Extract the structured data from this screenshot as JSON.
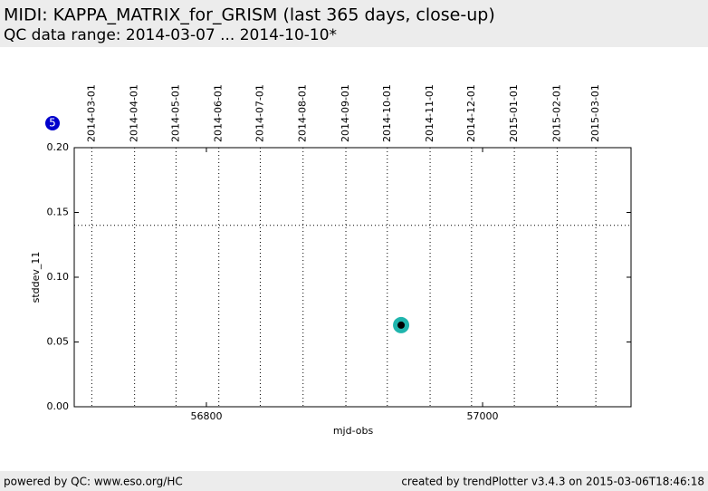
{
  "chart_data": {
    "type": "scatter",
    "title": "MIDI: KAPPA_MATRIX_for_GRISM (last 365 days, close-up)",
    "subtitle": "QC data range: 2014-03-07 ... 2014-10-10*",
    "x_label": "mjd-obs",
    "y_label": "stddev_11",
    "xlim": [
      56704.3,
      57107.5
    ],
    "ylim": [
      0,
      0.2
    ],
    "xticks": [
      56800,
      57000
    ],
    "yticks": [
      {
        "value": 0,
        "label": "0.00"
      },
      {
        "value": 0.05,
        "label": "0.05"
      },
      {
        "value": 0.1,
        "label": "0.10"
      },
      {
        "value": 0.15,
        "label": "0.15"
      },
      {
        "value": 0.2,
        "label": "0.20"
      }
    ],
    "date_lines": [
      {
        "value": 56717,
        "label": "2014-03-01"
      },
      {
        "value": 56748,
        "label": "2014-04-01"
      },
      {
        "value": 56778,
        "label": "2014-05-01"
      },
      {
        "value": 56809,
        "label": "2014-06-01"
      },
      {
        "value": 56839,
        "label": "2014-07-01"
      },
      {
        "value": 56870,
        "label": "2014-08-01"
      },
      {
        "value": 56901,
        "label": "2014-09-01"
      },
      {
        "value": 56931,
        "label": "2014-10-01"
      },
      {
        "value": 56962,
        "label": "2014-11-01"
      },
      {
        "value": 56992,
        "label": "2014-12-01"
      },
      {
        "value": 57023,
        "label": "2015-01-01"
      },
      {
        "value": 57054,
        "label": "2015-02-01"
      },
      {
        "value": 57082,
        "label": "2015-03-01"
      }
    ],
    "hlines": [
      0.14
    ],
    "annotation": "5",
    "x": [
      56941
    ],
    "series": [
      {
        "color": "#1fb5ad",
        "values": [
          0.063
        ]
      }
    ]
  },
  "footer": {
    "left": "powered by QC: www.eso.org/HC",
    "right": "created by trendPlotter v3.4.3 on 2015-03-06T18:46:18"
  }
}
